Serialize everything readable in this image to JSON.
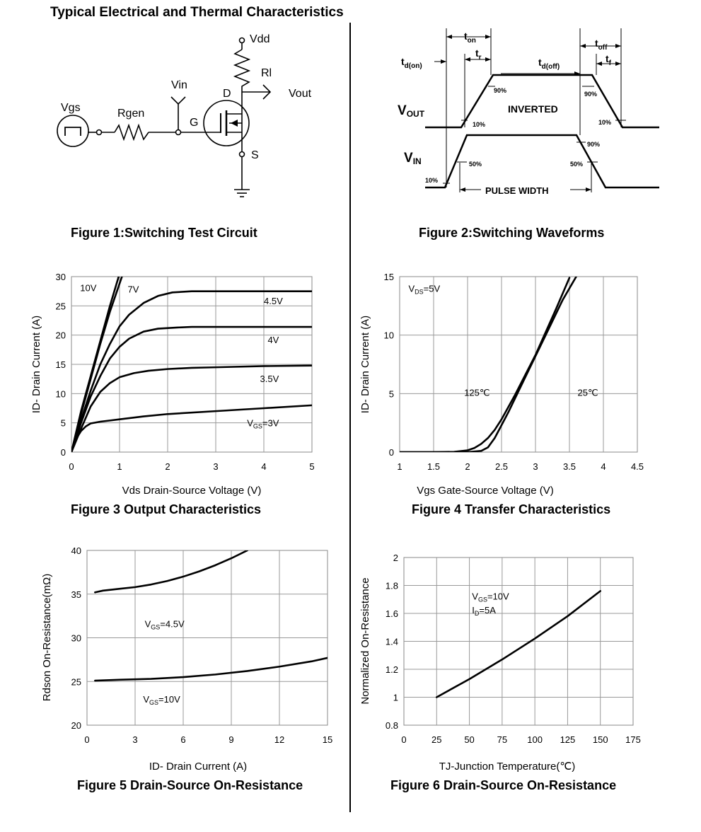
{
  "page_title": "Typical Electrical and Thermal Characteristics",
  "figure1": {
    "caption": "Figure 1:Switching Test Circuit",
    "labels": {
      "vdd": "Vdd",
      "rl": "Rl",
      "vout": "Vout",
      "vin": "Vin",
      "d": "D",
      "g": "G",
      "s": "S",
      "vgs": "Vgs",
      "rgen": "Rgen"
    }
  },
  "figure2": {
    "caption": "Figure 2:Switching Waveforms",
    "labels": {
      "ton": "t",
      "ton_sub": "on",
      "tr": "t",
      "tr_sub": "r",
      "tdon": "t",
      "tdon_sub": "d(on)",
      "tdoff": "t",
      "tdoff_sub": "d(off)",
      "toff": "t",
      "toff_sub": "off",
      "tf": "t",
      "tf_sub": "f",
      "vout": "V",
      "vout_sub": "OUT",
      "vin": "V",
      "vin_sub": "IN",
      "inverted": "INVERTED",
      "pulse_width": "PULSE WIDTH",
      "p90a": "90%",
      "p90b": "90%",
      "p10a": "10%",
      "p10b": "10%",
      "p90c": "90%",
      "p50a": "50%",
      "p50b": "50%",
      "p10c": "10%"
    }
  },
  "chart_data": [
    {
      "id": "fig3",
      "type": "line",
      "caption": "Figure 3 Output Characteristics",
      "xlabel": "Vds Drain-Source Voltage (V)",
      "ylabel": "ID- Drain Current (A)",
      "xlim": [
        0,
        5
      ],
      "ylim": [
        0,
        30
      ],
      "grid": true,
      "xticks": [
        "0",
        "1",
        "2",
        "3",
        "4",
        "5"
      ],
      "yticks": [
        "0",
        "5",
        "10",
        "15",
        "20",
        "25",
        "30"
      ],
      "series": [
        {
          "name": "10V",
          "x": [
            0,
            0.2,
            0.4,
            0.6,
            0.8,
            1.0
          ],
          "y": [
            0,
            7,
            13,
            19,
            25,
            30.5
          ]
        },
        {
          "name": "7V",
          "x": [
            0,
            0.2,
            0.4,
            0.6,
            0.8,
            1.05
          ],
          "y": [
            0,
            6.5,
            12.5,
            18.5,
            24,
            30
          ]
        },
        {
          "name": "4.5V",
          "x": [
            0,
            0.2,
            0.4,
            0.6,
            0.8,
            1.0,
            1.2,
            1.5,
            1.8,
            2.1,
            2.5,
            3,
            5
          ],
          "y": [
            0,
            5.5,
            10.5,
            15,
            18.5,
            21.5,
            23.5,
            25.5,
            26.7,
            27.3,
            27.5,
            27.5,
            27.5
          ]
        },
        {
          "name": "4V",
          "x": [
            0,
            0.2,
            0.4,
            0.6,
            0.8,
            1.0,
            1.2,
            1.5,
            1.8,
            2.2,
            2.5,
            3,
            5
          ],
          "y": [
            0,
            5,
            9.5,
            13,
            16,
            18,
            19.4,
            20.6,
            21.1,
            21.3,
            21.4,
            21.4,
            21.4
          ]
        },
        {
          "name": "3.5V",
          "x": [
            0,
            0.2,
            0.4,
            0.6,
            0.8,
            1.0,
            1.3,
            1.6,
            2,
            2.5,
            3,
            4,
            5
          ],
          "y": [
            0,
            4,
            7.8,
            10.3,
            11.8,
            12.8,
            13.5,
            13.9,
            14.2,
            14.4,
            14.5,
            14.7,
            14.8
          ]
        },
        {
          "name": "VGS=3V",
          "x": [
            0,
            0.1,
            0.2,
            0.3,
            0.4,
            0.6,
            0.8,
            1.0,
            1.5,
            2,
            3,
            4,
            5
          ],
          "y": [
            0,
            2.3,
            3.6,
            4.4,
            4.9,
            5.2,
            5.4,
            5.6,
            6.1,
            6.5,
            7.0,
            7.5,
            8.0
          ]
        }
      ],
      "annotations": [
        {
          "text": "10V",
          "x": 0.18,
          "y": 27.5
        },
        {
          "text": "7V",
          "x": 1.17,
          "y": 27.3
        },
        {
          "text": "4.5V",
          "x": 4.0,
          "y": 25.3
        },
        {
          "text": "4V",
          "x": 4.08,
          "y": 18.6
        },
        {
          "text": "3.5V",
          "x": 3.92,
          "y": 12.0
        },
        {
          "text": "V",
          "sub": "GS",
          "tail": "=3V",
          "x": 3.65,
          "y": 4.4
        }
      ]
    },
    {
      "id": "fig4",
      "type": "line",
      "caption": "Figure 4 Transfer Characteristics",
      "xlabel": "Vgs Gate-Source Voltage (V)",
      "ylabel": "ID- Drain Current (A)",
      "xlim": [
        1,
        4.5
      ],
      "ylim": [
        0,
        15
      ],
      "grid": true,
      "xticks": [
        "1",
        "1.5",
        "2",
        "2.5",
        "3",
        "3.5",
        "4",
        "4.5"
      ],
      "yticks": [
        "0",
        "5",
        "10",
        "15"
      ],
      "series": [
        {
          "name": "125℃",
          "x": [
            1,
            1.5,
            1.8,
            2.0,
            2.1,
            2.2,
            2.3,
            2.4,
            2.5,
            2.7,
            3.0,
            3.3,
            3.5
          ],
          "y": [
            0,
            0,
            0.02,
            0.15,
            0.35,
            0.7,
            1.2,
            1.9,
            2.8,
            4.9,
            8.3,
            12.2,
            14.9
          ]
        },
        {
          "name": "25℃",
          "x": [
            1,
            2.0,
            2.2,
            2.3,
            2.4,
            2.5,
            2.6,
            2.8,
            3.0,
            3.2,
            3.4,
            3.6
          ],
          "y": [
            0,
            0,
            0.1,
            0.4,
            1.2,
            2.3,
            3.4,
            5.8,
            8.2,
            10.6,
            13.0,
            15.0
          ]
        }
      ],
      "annotations": [
        {
          "text": "V",
          "sub": "DS",
          "tail": "=5V",
          "x": 1.13,
          "y": 13.7
        },
        {
          "text": "125℃",
          "x": 1.95,
          "y": 4.8
        },
        {
          "text": "25℃",
          "x": 3.62,
          "y": 4.8
        }
      ]
    },
    {
      "id": "fig5",
      "type": "line",
      "caption": "Figure 5 Drain-Source On-Resistance",
      "xlabel": "ID- Drain Current (A)",
      "ylabel": "Rdson On-Resistance(mΩ)",
      "xlim": [
        0,
        15
      ],
      "ylim": [
        20,
        40
      ],
      "grid": true,
      "xticks": [
        "0",
        "3",
        "6",
        "9",
        "12",
        "15"
      ],
      "yticks": [
        "20",
        "25",
        "30",
        "35",
        "40"
      ],
      "series": [
        {
          "name": "VGS=4.5V",
          "x": [
            0.5,
            1,
            2,
            3,
            4,
            5,
            6,
            7,
            8,
            9,
            10
          ],
          "y": [
            35.2,
            35.4,
            35.6,
            35.8,
            36.1,
            36.5,
            37.0,
            37.6,
            38.3,
            39.1,
            40.0
          ]
        },
        {
          "name": "VGS=10V",
          "x": [
            0.5,
            2,
            4,
            6,
            8,
            10,
            12,
            14,
            15
          ],
          "y": [
            25.1,
            25.2,
            25.3,
            25.5,
            25.8,
            26.2,
            26.7,
            27.3,
            27.7
          ]
        }
      ],
      "annotations": [
        {
          "text": "V",
          "sub": "GS",
          "tail": "=4.5V",
          "x": 3.6,
          "y": 31.2
        },
        {
          "text": "V",
          "sub": "GS",
          "tail": "=10V",
          "x": 3.5,
          "y": 22.6
        }
      ]
    },
    {
      "id": "fig6",
      "type": "line",
      "caption": "Figure 6 Drain-Source On-Resistance",
      "xlabel": "TJ-Junction Temperature(℃)",
      "ylabel": "Normalized On-Resistance",
      "xlim": [
        0,
        175
      ],
      "ylim": [
        0.8,
        2
      ],
      "grid": true,
      "xticks": [
        "0",
        "25",
        "50",
        "75",
        "100",
        "125",
        "150",
        "175"
      ],
      "yticks": [
        "0.8",
        "1",
        "1.2",
        "1.4",
        "1.6",
        "1.8",
        "2"
      ],
      "series": [
        {
          "name": "VGS=10V, ID=5A",
          "x": [
            25,
            50,
            75,
            100,
            125,
            150
          ],
          "y": [
            1.0,
            1.13,
            1.27,
            1.42,
            1.58,
            1.76
          ]
        }
      ],
      "annotations": [
        {
          "text": "V",
          "sub": "GS",
          "tail": "=10V",
          "x": 52,
          "y": 1.7
        },
        {
          "text": "I",
          "sub": "D",
          "tail": "=5A",
          "x": 52,
          "y": 1.6
        }
      ]
    }
  ]
}
